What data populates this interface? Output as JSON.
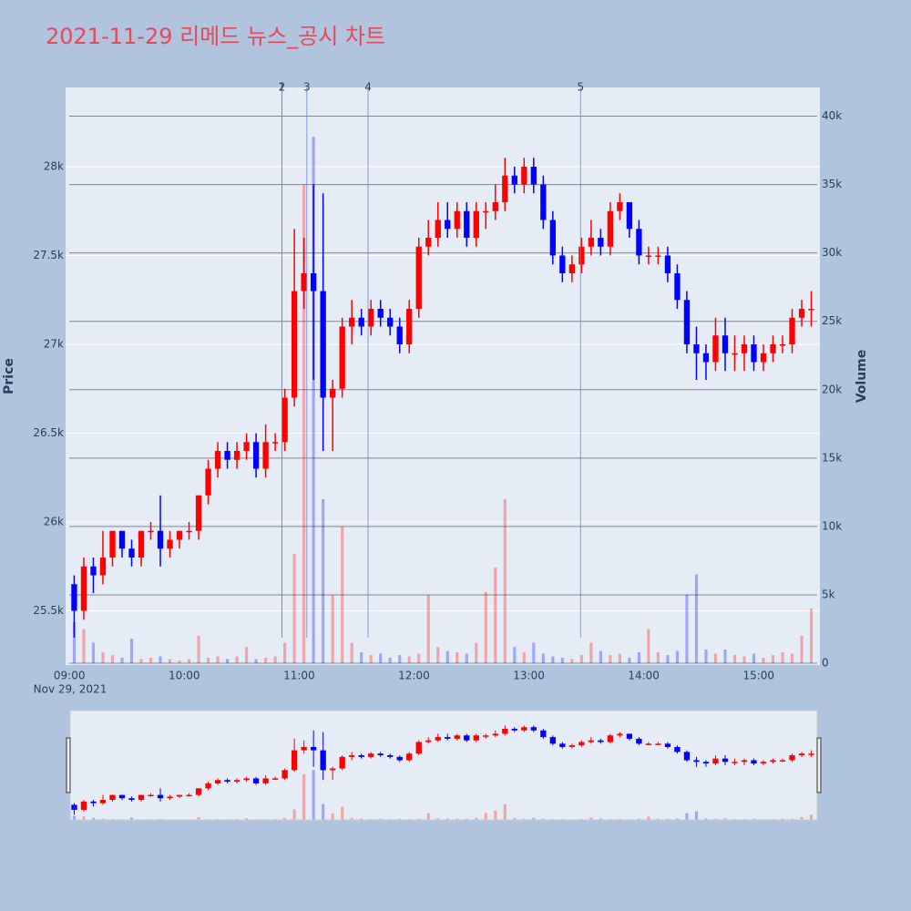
{
  "chart_data": {
    "type": "candlestick",
    "title": "2021-11-29 리메드 뉴스_공시 차트",
    "y_title": "Price",
    "y2_title": "Volume",
    "x_date_label": "Nov 29, 2021",
    "x": [
      "09:00",
      "09:05",
      "09:10",
      "09:15",
      "09:20",
      "09:25",
      "09:30",
      "09:35",
      "09:40",
      "09:45",
      "09:50",
      "09:55",
      "10:00",
      "10:05",
      "10:10",
      "10:15",
      "10:20",
      "10:25",
      "10:30",
      "10:35",
      "10:40",
      "10:45",
      "10:50",
      "10:55",
      "11:00",
      "11:05",
      "11:10",
      "11:15",
      "11:20",
      "11:25",
      "11:30",
      "11:35",
      "11:40",
      "11:45",
      "11:50",
      "11:55",
      "12:00",
      "12:05",
      "12:10",
      "12:15",
      "12:20",
      "12:25",
      "12:30",
      "12:35",
      "12:40",
      "12:45",
      "12:50",
      "12:55",
      "13:00",
      "13:05",
      "13:10",
      "13:15",
      "13:20",
      "13:25",
      "13:30",
      "13:35",
      "13:40",
      "13:45",
      "13:50",
      "13:55",
      "14:00",
      "14:05",
      "14:10",
      "14:15",
      "14:20",
      "14:25",
      "14:30",
      "14:35",
      "14:40",
      "14:45",
      "14:50",
      "14:55",
      "15:00",
      "15:05",
      "15:10",
      "15:15",
      "15:20",
      "15:25"
    ],
    "open": [
      25650,
      25500,
      25750,
      25700,
      25800,
      25950,
      25850,
      25800,
      25950,
      25950,
      25850,
      25900,
      25950,
      25950,
      26150,
      26300,
      26400,
      26350,
      26400,
      26450,
      26300,
      26450,
      26450,
      26700,
      27300,
      27400,
      27300,
      26700,
      26750,
      27100,
      27150,
      27100,
      27200,
      27150,
      27100,
      27000,
      27200,
      27550,
      27600,
      27700,
      27650,
      27750,
      27600,
      27750,
      27750,
      27800,
      27950,
      27900,
      28000,
      27900,
      27700,
      27500,
      27400,
      27450,
      27550,
      27600,
      27550,
      27750,
      27800,
      27650,
      27500,
      27500,
      27500,
      27400,
      27250,
      27000,
      26950,
      26900,
      27050,
      26950,
      26950,
      27000,
      26900,
      26950,
      27000,
      27000,
      27150,
      27200
    ],
    "high": [
      25700,
      25800,
      25800,
      25950,
      25950,
      25950,
      25900,
      25950,
      26000,
      26150,
      25950,
      25950,
      26000,
      26150,
      26350,
      26450,
      26450,
      26450,
      26500,
      26500,
      26550,
      26500,
      26750,
      27650,
      27600,
      27900,
      27850,
      26800,
      27150,
      27250,
      27200,
      27250,
      27250,
      27200,
      27150,
      27250,
      27600,
      27700,
      27800,
      27800,
      27800,
      27800,
      27800,
      27800,
      27900,
      28050,
      28000,
      28050,
      28050,
      27950,
      27750,
      27550,
      27500,
      27600,
      27700,
      27650,
      27800,
      27850,
      27800,
      27700,
      27550,
      27550,
      27550,
      27450,
      27300,
      27100,
      27000,
      27150,
      27150,
      27050,
      27050,
      27050,
      27000,
      27050,
      27050,
      27200,
      27250,
      27300
    ],
    "low": [
      25350,
      25450,
      25600,
      25650,
      25750,
      25800,
      25750,
      25750,
      25900,
      25750,
      25800,
      25850,
      25900,
      25900,
      26100,
      26250,
      26300,
      26300,
      26350,
      26250,
      26250,
      26400,
      26400,
      26650,
      27200,
      26800,
      26400,
      26400,
      26700,
      27000,
      27050,
      27050,
      27100,
      27050,
      26950,
      26950,
      27150,
      27500,
      27550,
      27600,
      27600,
      27550,
      27550,
      27650,
      27700,
      27750,
      27850,
      27850,
      27850,
      27650,
      27450,
      27350,
      27350,
      27400,
      27500,
      27500,
      27500,
      27700,
      27600,
      27450,
      27450,
      27450,
      27350,
      27200,
      26950,
      26800,
      26800,
      26850,
      26850,
      26850,
      26850,
      26850,
      26850,
      26900,
      26950,
      26950,
      27100,
      27100
    ],
    "close": [
      25500,
      25750,
      25700,
      25800,
      25950,
      25850,
      25800,
      25950,
      25950,
      25850,
      25900,
      25950,
      25950,
      26150,
      26300,
      26400,
      26350,
      26400,
      26450,
      26300,
      26450,
      26450,
      26700,
      27300,
      27400,
      27300,
      26700,
      26750,
      27100,
      27150,
      27100,
      27200,
      27150,
      27100,
      27000,
      27200,
      27550,
      27600,
      27700,
      27650,
      27750,
      27600,
      27750,
      27750,
      27800,
      27950,
      27900,
      28000,
      27900,
      27700,
      27500,
      27400,
      27450,
      27550,
      27600,
      27550,
      27750,
      27800,
      27650,
      27500,
      27500,
      27500,
      27400,
      27250,
      27000,
      26950,
      26900,
      27050,
      26950,
      26950,
      27000,
      26900,
      26950,
      27000,
      27000,
      27150,
      27200,
      27200
    ],
    "volume": [
      3000,
      2500,
      1500,
      800,
      600,
      400,
      1800,
      300,
      400,
      500,
      300,
      200,
      300,
      2000,
      400,
      500,
      300,
      500,
      1200,
      300,
      400,
      500,
      1500,
      8000,
      35000,
      38500,
      12000,
      5000,
      10000,
      1500,
      800,
      600,
      700,
      400,
      600,
      500,
      700,
      5000,
      1200,
      900,
      800,
      700,
      1500,
      5200,
      7000,
      12000,
      1200,
      800,
      1500,
      700,
      500,
      400,
      300,
      600,
      1500,
      900,
      600,
      700,
      400,
      800,
      2500,
      800,
      600,
      900,
      5000,
      6500,
      1000,
      700,
      1000,
      600,
      500,
      700,
      400,
      600,
      800,
      700,
      2000,
      4000
    ],
    "up_color": "#ff0000",
    "down_color": "#0000ff",
    "news": [
      {
        "label": "1",
        "time": "10:51"
      },
      {
        "label": "2",
        "time": "10:51"
      },
      {
        "label": "3",
        "time": "11:04"
      },
      {
        "label": "4",
        "time": "11:36"
      },
      {
        "label": "5",
        "time": "13:27"
      }
    ],
    "xlim": [
      "08:58",
      "15:32"
    ],
    "xticks": [
      "09:00",
      "10:00",
      "11:00",
      "12:00",
      "13:00",
      "14:00",
      "15:00"
    ],
    "ylim": [
      25195,
      28446
    ],
    "yticks": [
      {
        "value": 25500,
        "label": "25.5k"
      },
      {
        "value": 26000,
        "label": "26k"
      },
      {
        "value": 26500,
        "label": "26.5k"
      },
      {
        "value": 27000,
        "label": "27k"
      },
      {
        "value": 27500,
        "label": "27.5k"
      },
      {
        "value": 28000,
        "label": "28k"
      }
    ],
    "y2lim": [
      -130,
      42100
    ],
    "y2ticks": [
      0,
      {
        "value": 5000,
        "label": "5k"
      },
      {
        "value": 10000,
        "label": "10k"
      },
      {
        "value": 15000,
        "label": "15k"
      },
      {
        "value": 20000,
        "label": "20k"
      },
      {
        "value": 25000,
        "label": "25k"
      },
      {
        "value": 30000,
        "label": "30k"
      },
      {
        "value": 35000,
        "label": "35k"
      },
      {
        "value": 40000,
        "label": "40k"
      }
    ],
    "grid": true,
    "rangeslider": true
  }
}
